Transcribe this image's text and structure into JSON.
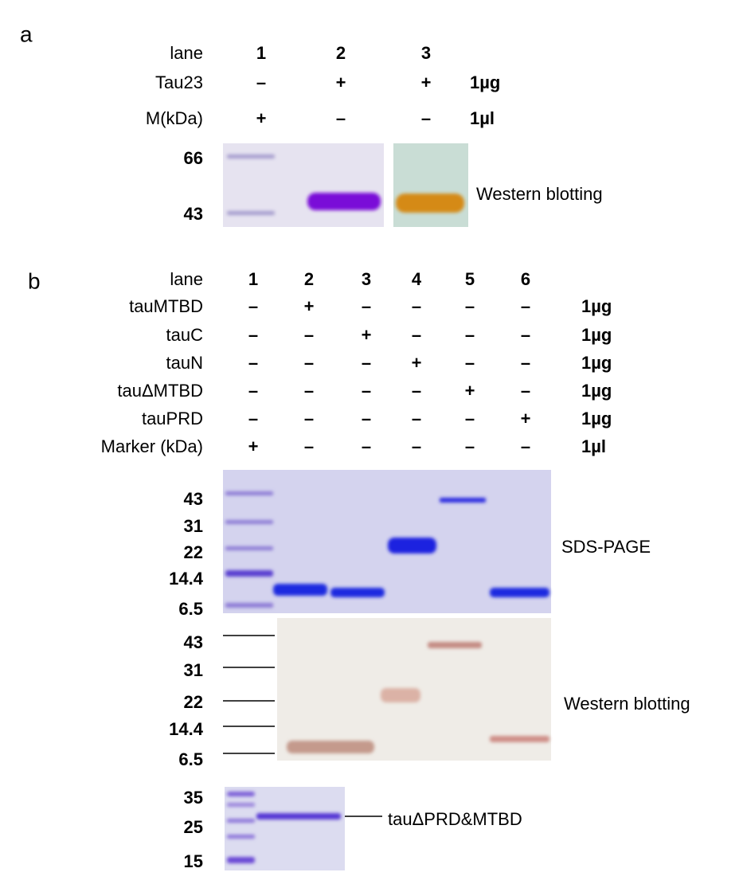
{
  "panel_a": {
    "letter": "a",
    "lane_label": "lane",
    "lanes": [
      "1",
      "2",
      "3"
    ],
    "rows": [
      {
        "label": "Tau23",
        "marks": [
          "–",
          "+",
          "+"
        ],
        "amount": "1µg"
      },
      {
        "label": "M(kDa)",
        "marks": [
          "+",
          "–",
          "–"
        ],
        "amount": "1µl"
      }
    ],
    "markers": [
      "66",
      "43"
    ],
    "blot_label": "Western blotting"
  },
  "panel_b": {
    "letter": "b",
    "lane_label": "lane",
    "lanes": [
      "1",
      "2",
      "3",
      "4",
      "5",
      "6"
    ],
    "rows": [
      {
        "label": "tauMTBD",
        "marks": [
          "–",
          "+",
          "–",
          "–",
          "–",
          "–"
        ],
        "amount": "1µg"
      },
      {
        "label": "tauC",
        "marks": [
          "–",
          "–",
          "+",
          "–",
          "–",
          "–"
        ],
        "amount": "1µg"
      },
      {
        "label": "tauN",
        "marks": [
          "–",
          "–",
          "–",
          "+",
          "–",
          "–"
        ],
        "amount": "1µg"
      },
      {
        "label": "tauΔMTBD",
        "marks": [
          "–",
          "–",
          "–",
          "–",
          "+",
          "–"
        ],
        "amount": "1µg"
      },
      {
        "label": "tauPRD",
        "marks": [
          "–",
          "–",
          "–",
          "–",
          "–",
          "+"
        ],
        "amount": "1µg"
      },
      {
        "label": "Marker (kDa)",
        "marks": [
          "+",
          "–",
          "–",
          "–",
          "–",
          "–"
        ],
        "amount": "1µl"
      }
    ],
    "sds_markers": [
      "43",
      "31",
      "22",
      "14.4",
      "6.5"
    ],
    "sds_label": "SDS-PAGE",
    "wb_markers": [
      "43",
      "31",
      "22",
      "14.4",
      "6.5"
    ],
    "wb_label": "Western blotting",
    "purified_markers": [
      "35",
      "25",
      "15"
    ],
    "purified_label": "tauΔPRD&MTBD"
  }
}
